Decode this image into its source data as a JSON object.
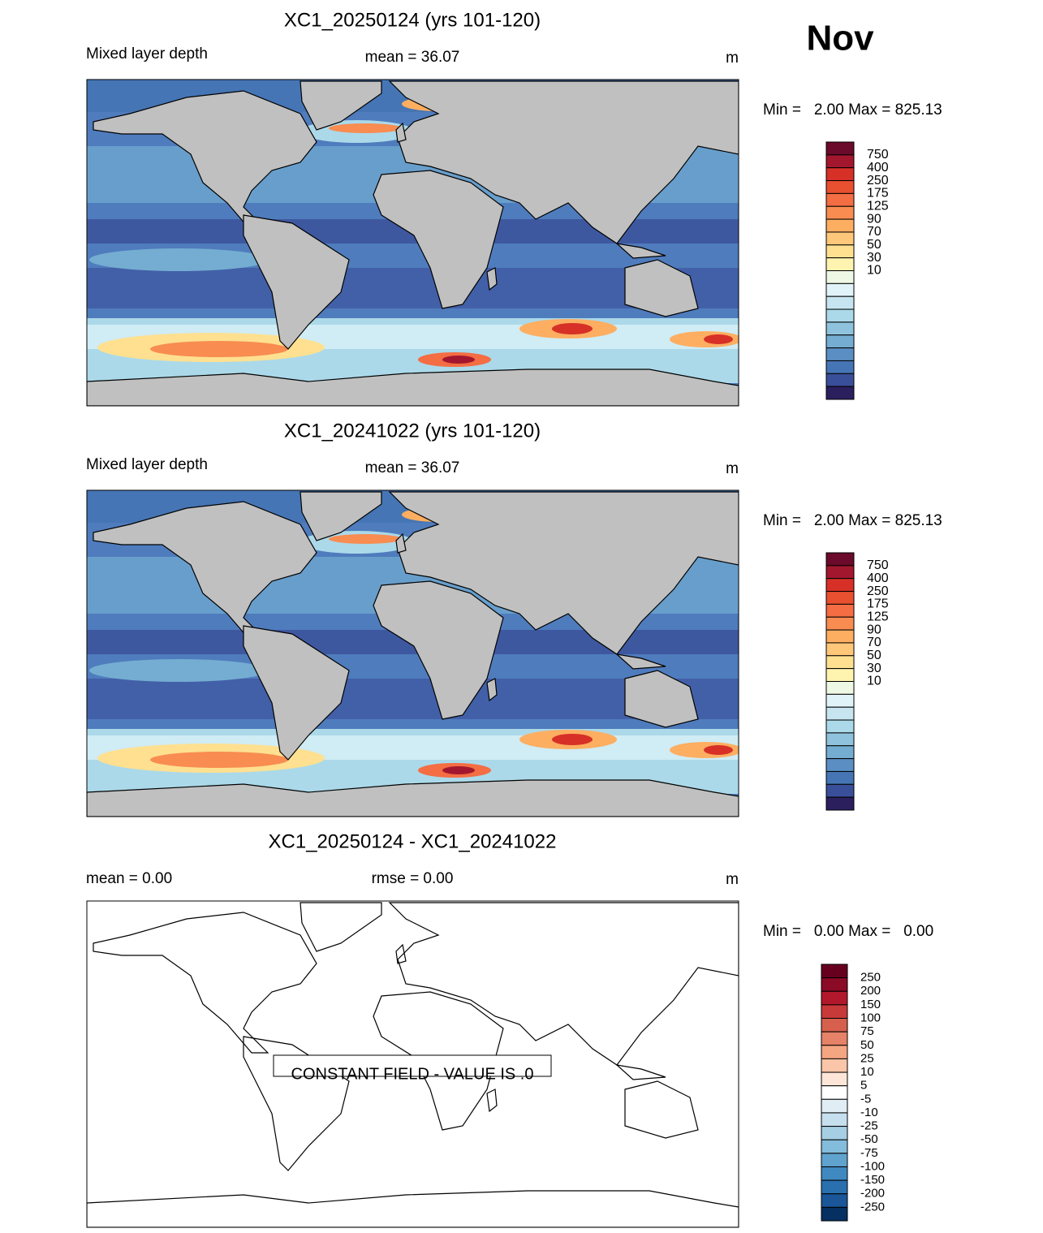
{
  "month": "Nov",
  "panels": [
    {
      "title": "XC1_20250124 (yrs 101-120)",
      "left": "Mixed layer depth",
      "center": "mean =  36.07",
      "right": "m",
      "min_max": "Min =   2.00 Max = 825.13",
      "colorbar": {
        "labels": [
          750,
          400,
          250,
          175,
          125,
          90,
          70,
          50,
          30,
          10
        ],
        "colors": [
          "#6b0a2a",
          "#a3172e",
          "#d73027",
          "#e8502f",
          "#f46d43",
          "#f88c51",
          "#fdae61",
          "#fec77a",
          "#fee090",
          "#fff3b0",
          "#eef8e4",
          "#e0f3f8",
          "#c6e5f0",
          "#abd9e9",
          "#8fc3dd",
          "#74add1",
          "#5b8fc4",
          "#4575b4",
          "#3a4f99",
          "#2b1f5e"
        ]
      }
    },
    {
      "title": "XC1_20241022 (yrs 101-120)",
      "left": "Mixed layer depth",
      "center": "mean =  36.07",
      "right": "m",
      "min_max": "Min =   2.00 Max = 825.13",
      "colorbar": {
        "labels": [
          750,
          400,
          250,
          175,
          125,
          90,
          70,
          50,
          30,
          10
        ],
        "colors": [
          "#6b0a2a",
          "#a3172e",
          "#d73027",
          "#e8502f",
          "#f46d43",
          "#f88c51",
          "#fdae61",
          "#fec77a",
          "#fee090",
          "#fff3b0",
          "#eef8e4",
          "#e0f3f8",
          "#c6e5f0",
          "#abd9e9",
          "#8fc3dd",
          "#74add1",
          "#5b8fc4",
          "#4575b4",
          "#3a4f99",
          "#2b1f5e"
        ]
      }
    },
    {
      "title": "XC1_20250124 - XC1_20241022",
      "left": "mean =   0.00",
      "center": "rmse =   0.00",
      "right": "m",
      "min_max": "Min =   0.00 Max =   0.00",
      "note": "CONSTANT FIELD - VALUE IS .0",
      "colorbar": {
        "labels": [
          250,
          200,
          150,
          100,
          75,
          50,
          25,
          10,
          5,
          -5,
          -10,
          -25,
          -50,
          -75,
          -100,
          -150,
          -200,
          -250
        ],
        "colors": [
          "#67001f",
          "#8b0a26",
          "#b2182b",
          "#c83a3a",
          "#d6604d",
          "#e58267",
          "#f4a582",
          "#fac5a8",
          "#fde6d8",
          "#ffffff",
          "#e1edf5",
          "#c6dfee",
          "#a6cfe4",
          "#84bcdb",
          "#5fa3ce",
          "#3f89c0",
          "#2a6fae",
          "#1a5698",
          "#053061"
        ]
      }
    }
  ]
}
